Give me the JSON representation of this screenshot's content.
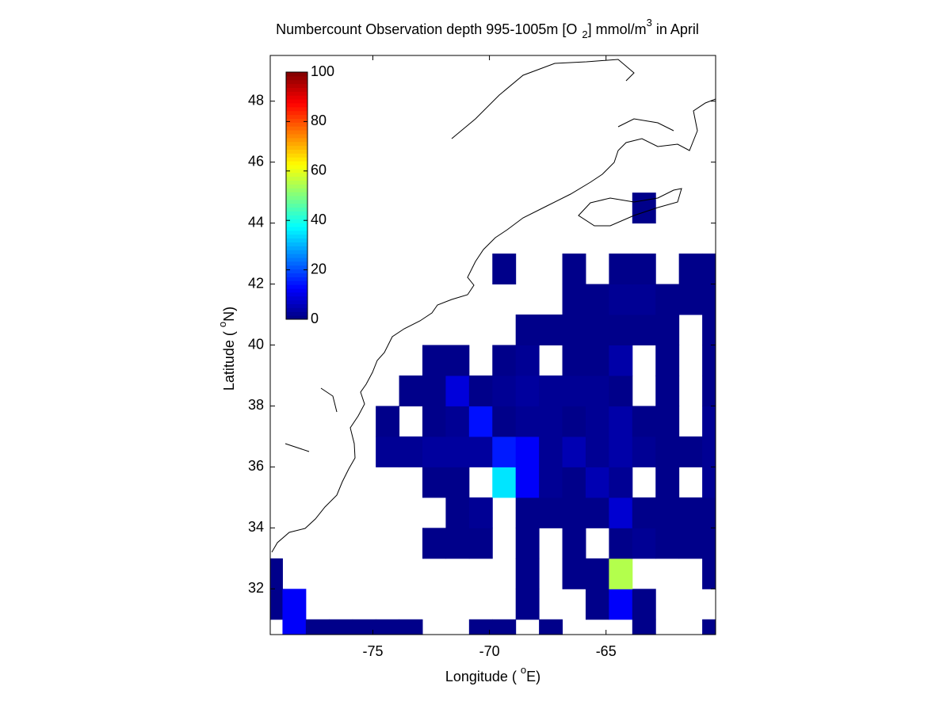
{
  "chart_data": {
    "type": "heatmap",
    "title": [
      "Numbercount Observation depth 995-1005m [O",
      "2",
      "] mmol/m",
      "3",
      " in April"
    ],
    "xlabel": [
      "Longitude ( ",
      "o",
      "E)"
    ],
    "ylabel": [
      "Latitude ( ",
      "o",
      "N)"
    ],
    "x": [
      -79.375,
      -78.375,
      -77.375,
      -76.375,
      -75.375,
      -74.375,
      -73.375,
      -72.375,
      -71.375,
      -70.375,
      -69.375,
      -68.375,
      -67.375,
      -66.375,
      -65.375,
      -64.375,
      -63.375,
      -62.375,
      -61.375,
      -60.375
    ],
    "y": [
      30.5,
      31.5,
      32.5,
      33.5,
      34.5,
      35.5,
      36.5,
      37.5,
      38.5,
      39.5,
      40.5,
      41.5,
      42.5,
      43.5,
      44.5
    ],
    "z": [
      [
        null,
        12,
        1,
        1,
        1,
        1,
        1,
        null,
        null,
        1,
        1,
        null,
        1,
        null,
        null,
        null,
        1,
        null,
        null,
        1
      ],
      [
        1,
        12,
        null,
        null,
        null,
        null,
        null,
        null,
        null,
        null,
        null,
        1,
        null,
        null,
        1,
        12,
        1,
        null,
        null,
        null
      ],
      [
        1,
        null,
        null,
        null,
        null,
        null,
        null,
        null,
        null,
        null,
        null,
        1,
        null,
        1,
        1,
        55,
        null,
        null,
        null,
        1
      ],
      [
        null,
        null,
        null,
        null,
        null,
        null,
        null,
        1,
        1,
        1,
        null,
        1,
        null,
        1,
        null,
        1,
        2,
        1,
        1,
        1
      ],
      [
        null,
        null,
        null,
        null,
        null,
        null,
        null,
        null,
        1,
        2,
        null,
        1,
        1,
        1,
        1,
        8,
        1,
        1,
        1,
        1
      ],
      [
        null,
        null,
        null,
        null,
        null,
        null,
        null,
        1,
        1,
        null,
        35,
        12,
        2,
        1,
        5,
        2,
        null,
        1,
        null,
        2
      ],
      [
        null,
        null,
        null,
        null,
        null,
        2,
        2,
        3,
        3,
        3,
        15,
        12,
        2,
        5,
        2,
        4,
        2,
        1,
        1,
        2
      ],
      [
        null,
        null,
        null,
        null,
        null,
        1,
        null,
        1,
        2,
        14,
        1,
        2,
        2,
        1,
        2,
        4,
        1,
        1,
        null,
        2
      ],
      [
        null,
        null,
        null,
        null,
        null,
        null,
        1,
        1,
        9,
        1,
        2,
        3,
        2,
        2,
        2,
        1,
        null,
        1,
        null,
        1
      ],
      [
        null,
        null,
        null,
        null,
        null,
        null,
        null,
        1,
        1,
        null,
        1,
        2,
        null,
        1,
        1,
        4,
        null,
        1,
        null,
        1
      ],
      [
        null,
        null,
        null,
        null,
        null,
        null,
        null,
        null,
        null,
        null,
        null,
        1,
        1,
        1,
        1,
        1,
        1,
        1,
        null,
        1
      ],
      [
        null,
        null,
        null,
        null,
        null,
        null,
        null,
        null,
        null,
        null,
        null,
        null,
        null,
        1,
        1,
        2,
        2,
        1,
        1,
        1
      ],
      [
        null,
        null,
        null,
        null,
        null,
        null,
        null,
        null,
        null,
        null,
        1,
        null,
        null,
        1,
        null,
        1,
        1,
        null,
        1,
        1
      ],
      [
        null,
        null,
        null,
        null,
        null,
        null,
        null,
        null,
        null,
        null,
        null,
        null,
        null,
        null,
        null,
        null,
        null,
        null,
        null,
        null
      ],
      [
        null,
        null,
        null,
        null,
        null,
        null,
        null,
        null,
        null,
        null,
        null,
        null,
        null,
        null,
        null,
        null,
        1,
        null,
        null,
        null
      ]
    ],
    "xlim": [
      -79.4,
      -60.3
    ],
    "ylim": [
      30.5,
      49.5
    ],
    "xticks": [
      -75,
      -70,
      -65
    ],
    "yticks": [
      32,
      34,
      36,
      38,
      40,
      42,
      44,
      46,
      48
    ],
    "colormap": "jet",
    "clim": [
      0,
      100
    ],
    "colorbar_ticks": [
      0,
      20,
      40,
      60,
      80,
      100
    ]
  }
}
